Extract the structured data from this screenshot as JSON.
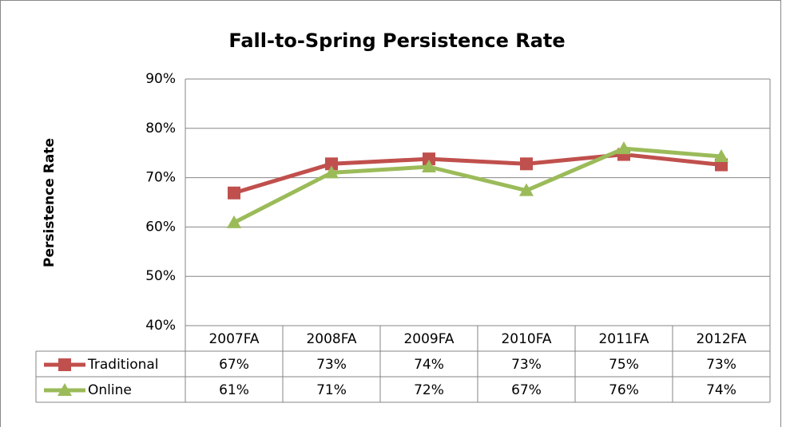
{
  "chart_data": {
    "type": "line",
    "title": "Fall-to-Spring Persistence Rate",
    "ylabel": "Persistence Rate",
    "categories": [
      "2007FA",
      "2008FA",
      "2009FA",
      "2010FA",
      "2011FA",
      "2012FA"
    ],
    "series": [
      {
        "name": "Traditional",
        "color": "#c0504d",
        "marker": "square",
        "values": [
          66.9,
          72.8,
          73.8,
          72.8,
          74.7,
          72.6
        ],
        "value_labels": [
          "67%",
          "73%",
          "74%",
          "73%",
          "75%",
          "73%"
        ]
      },
      {
        "name": "Online",
        "color": "#9bbb59",
        "marker": "triangle",
        "values": [
          60.9,
          71.0,
          72.2,
          67.4,
          75.9,
          74.3
        ],
        "value_labels": [
          "61%",
          "71%",
          "72%",
          "67%",
          "76%",
          "74%"
        ]
      }
    ],
    "ylim": [
      40,
      90
    ],
    "yticks": [
      {
        "value": 40,
        "label": "40%"
      },
      {
        "value": 50,
        "label": "50%"
      },
      {
        "value": 60,
        "label": "60%"
      },
      {
        "value": 70,
        "label": "70%"
      },
      {
        "value": 80,
        "label": "80%"
      },
      {
        "value": 90,
        "label": "90%"
      }
    ],
    "grid": true,
    "data_table": true
  }
}
